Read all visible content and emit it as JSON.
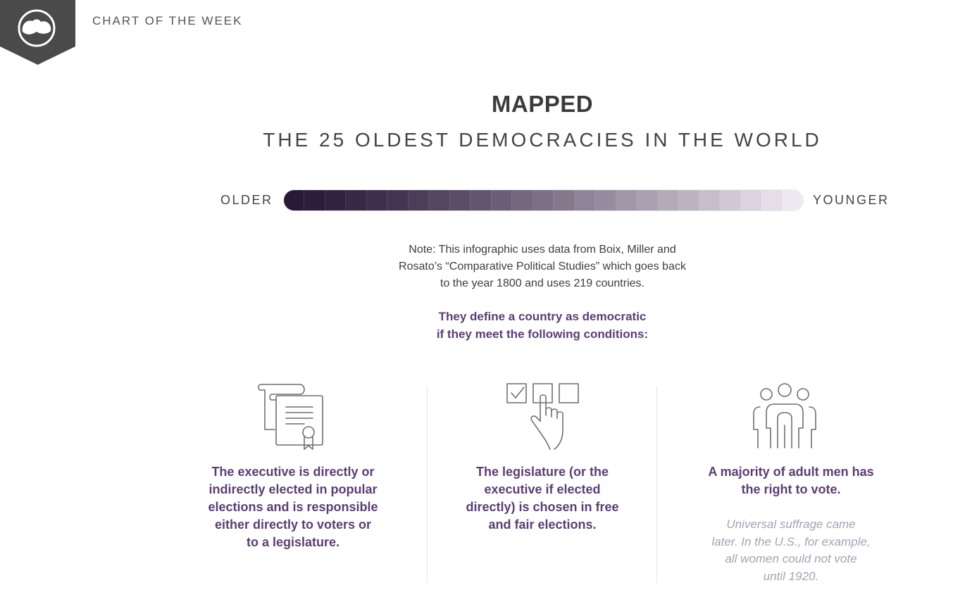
{
  "header": {
    "label": "CHART OF THE WEEK",
    "badge_color": "#4a4a4a"
  },
  "title": "MAPPED",
  "subtitle": "THE 25 OLDEST DEMOCRACIES IN THE WORLD",
  "legend": {
    "left": "OLDER",
    "right": "YOUNGER",
    "color_start": "#2a1838",
    "color_end": "#efe9f2",
    "segments": 25
  },
  "note": {
    "line1": "Note: This infographic uses data from Boix, Miller and",
    "line2": "Rosato’s “Comparative Political Studies” which goes back",
    "line3": "to the year 1800 and uses 219 countries."
  },
  "definition": {
    "line1": "They define a country as democratic",
    "line2": "if they meet the following conditions:"
  },
  "conditions": [
    {
      "icon": "document-certificate-icon",
      "lines": [
        "The executive is directly or",
        "indirectly elected in popular",
        "elections and is responsible",
        "either directly to voters or",
        "to a legislature."
      ]
    },
    {
      "icon": "ballot-checkbox-icon",
      "lines": [
        "The legislature (or the",
        "executive if elected",
        "directly) is chosen in free",
        "and fair elections."
      ]
    },
    {
      "icon": "people-group-icon",
      "lines": [
        "A majority of adult men has",
        "the right to vote."
      ],
      "note_lines": [
        "Universal suffrage came",
        "later. In the U.S., for example,",
        "all women could not vote",
        "until 1920."
      ]
    }
  ],
  "colors": {
    "accent_purple": "#5b3d74",
    "muted_note": "#a9a0b4",
    "icon_stroke": "#6f6f6f"
  }
}
